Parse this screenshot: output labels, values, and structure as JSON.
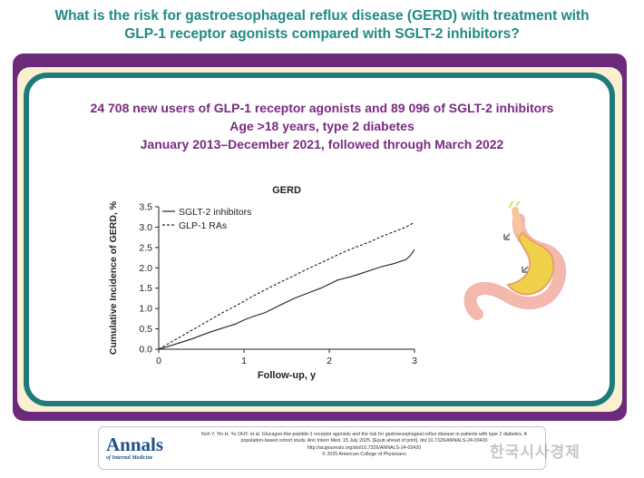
{
  "header": {
    "title_line1": "What is the risk for gastroesophageal reflux disease (GERD) with treatment with",
    "title_line2": "GLP-1 receptor agonists compared with SGLT-2 inhibitors?"
  },
  "study": {
    "line1": "24 708 new users of GLP-1 receptor agonists and 89 096 of SGLT-2 inhibitors",
    "line2": "Age >18 years, type 2 diabetes",
    "line3": "January 2013–December 2021, followed through March 2022"
  },
  "chart_data": {
    "type": "line",
    "title": "GERD",
    "xlabel": "Follow-up, y",
    "ylabel": "Cumulative Incidence of GERD, %",
    "xlim": [
      0,
      3
    ],
    "ylim": [
      0,
      3.5
    ],
    "x_ticks": [
      "0",
      "1",
      "2",
      "3"
    ],
    "y_ticks": [
      "0.0",
      "0.5",
      "1.0",
      "1.5",
      "2.0",
      "2.5",
      "3.0",
      "3.5"
    ],
    "grid": false,
    "legend_position": "top-left",
    "series": [
      {
        "name": "SGLT-2 inhibitors",
        "style": "solid",
        "x": [
          0,
          0.1,
          0.25,
          0.4,
          0.5,
          0.6,
          0.75,
          0.9,
          1.0,
          1.1,
          1.25,
          1.4,
          1.5,
          1.6,
          1.75,
          1.9,
          2.0,
          2.1,
          2.25,
          2.4,
          2.5,
          2.6,
          2.75,
          2.9,
          2.95,
          3.0
        ],
        "y": [
          0,
          0.06,
          0.16,
          0.26,
          0.34,
          0.42,
          0.52,
          0.62,
          0.72,
          0.8,
          0.9,
          1.06,
          1.16,
          1.26,
          1.38,
          1.5,
          1.6,
          1.7,
          1.78,
          1.88,
          1.95,
          2.02,
          2.1,
          2.2,
          2.3,
          2.45
        ]
      },
      {
        "name": "GLP-1 RAs",
        "style": "dashed",
        "x": [
          0,
          0.1,
          0.25,
          0.4,
          0.5,
          0.6,
          0.75,
          0.9,
          1.0,
          1.1,
          1.25,
          1.4,
          1.5,
          1.6,
          1.75,
          1.9,
          2.0,
          2.1,
          2.25,
          2.4,
          2.5,
          2.6,
          2.75,
          2.9,
          3.0
        ],
        "y": [
          0,
          0.12,
          0.3,
          0.48,
          0.6,
          0.72,
          0.9,
          1.06,
          1.18,
          1.3,
          1.46,
          1.62,
          1.72,
          1.82,
          1.98,
          2.12,
          2.22,
          2.32,
          2.46,
          2.58,
          2.66,
          2.76,
          2.88,
          3.0,
          3.12
        ]
      }
    ]
  },
  "citation": {
    "line1": "Noh Y, Yin H, Yu OHY, et al. Glucagon-like peptide-1 receptor agonists and the risk for gastroesophageal reflux disease in patients with type 2 diabetes. A",
    "line2": "population-based cohort study. Ann Intern Med. 15 July 2025. [Epub ahead of print]. doi:10.7326/ANNALS-24-03420",
    "line3": "http://acpjournals.org/doi/10.7326/ANNALS-24-03420",
    "line4": "© 2025 American College of Physicians"
  },
  "logo": {
    "main": "Annals",
    "sub": "of Internal Medicine"
  },
  "watermark": "한국시사경제",
  "colors": {
    "title_teal": "#1f8a84",
    "band_purple": "#6b2a7a",
    "panel_border": "#1f7a7a",
    "study_text": "#7a2a82"
  },
  "illustration_icon": "stomach-esophagus-icon"
}
